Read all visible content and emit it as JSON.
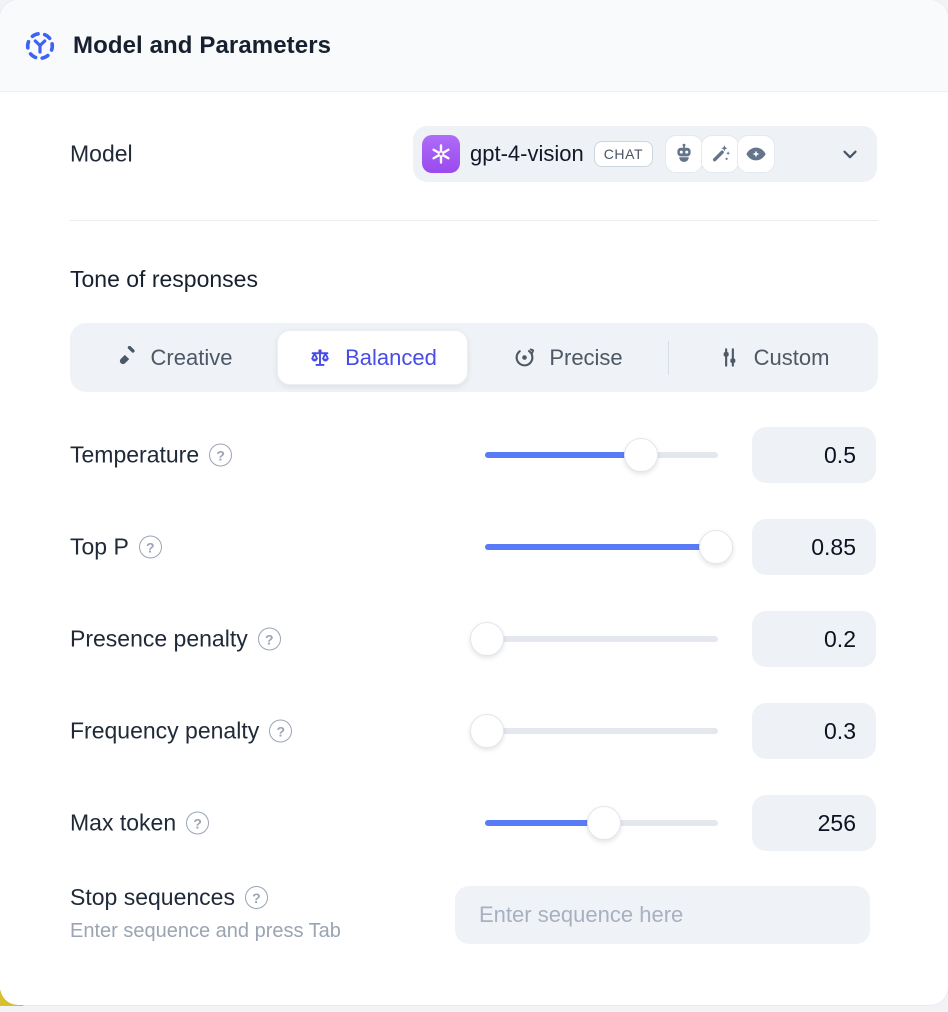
{
  "header": {
    "title": "Model and Parameters",
    "icon": "model-node-icon"
  },
  "model_row": {
    "label": "Model",
    "select": {
      "provider": "openai",
      "value": "gpt-4-vision",
      "type_badge": "CHAT",
      "capability_icons": [
        "robot-icon",
        "magic-wand-icon",
        "vision-eye-icon"
      ]
    }
  },
  "tone": {
    "heading": "Tone of responses",
    "options": [
      {
        "label": "Creative",
        "icon": "paintbrush-icon",
        "selected": false
      },
      {
        "label": "Balanced",
        "icon": "balance-scale-icon",
        "selected": true
      },
      {
        "label": "Precise",
        "icon": "target-icon",
        "selected": false
      },
      {
        "label": "Custom",
        "icon": "sliders-icon",
        "selected": false
      }
    ]
  },
  "help_symbol": "?",
  "parameters": [
    {
      "label": "Temperature",
      "value": "0.5",
      "slider_percent": 67
    },
    {
      "label": "Top P",
      "value": "0.85",
      "slider_percent": 99
    },
    {
      "label": "Presence penalty",
      "value": "0.2",
      "slider_percent": 1
    },
    {
      "label": "Frequency penalty",
      "value": "0.3",
      "slider_percent": 1
    },
    {
      "label": "Max token",
      "value": "256",
      "slider_percent": 51
    }
  ],
  "stop_sequences": {
    "label": "Stop sequences",
    "hint": "Enter sequence and press Tab",
    "placeholder": "Enter sequence here"
  },
  "colors": {
    "accent_blue": "#3D63F2",
    "selected_indigo": "#474CE6",
    "slider_blue": "#5A7BF8",
    "provider_purple": "#A55BF2",
    "corner_yellow": "#D9BF2D",
    "header_bg": "#F8FAFC",
    "field_bg": "#EEF1F6"
  }
}
